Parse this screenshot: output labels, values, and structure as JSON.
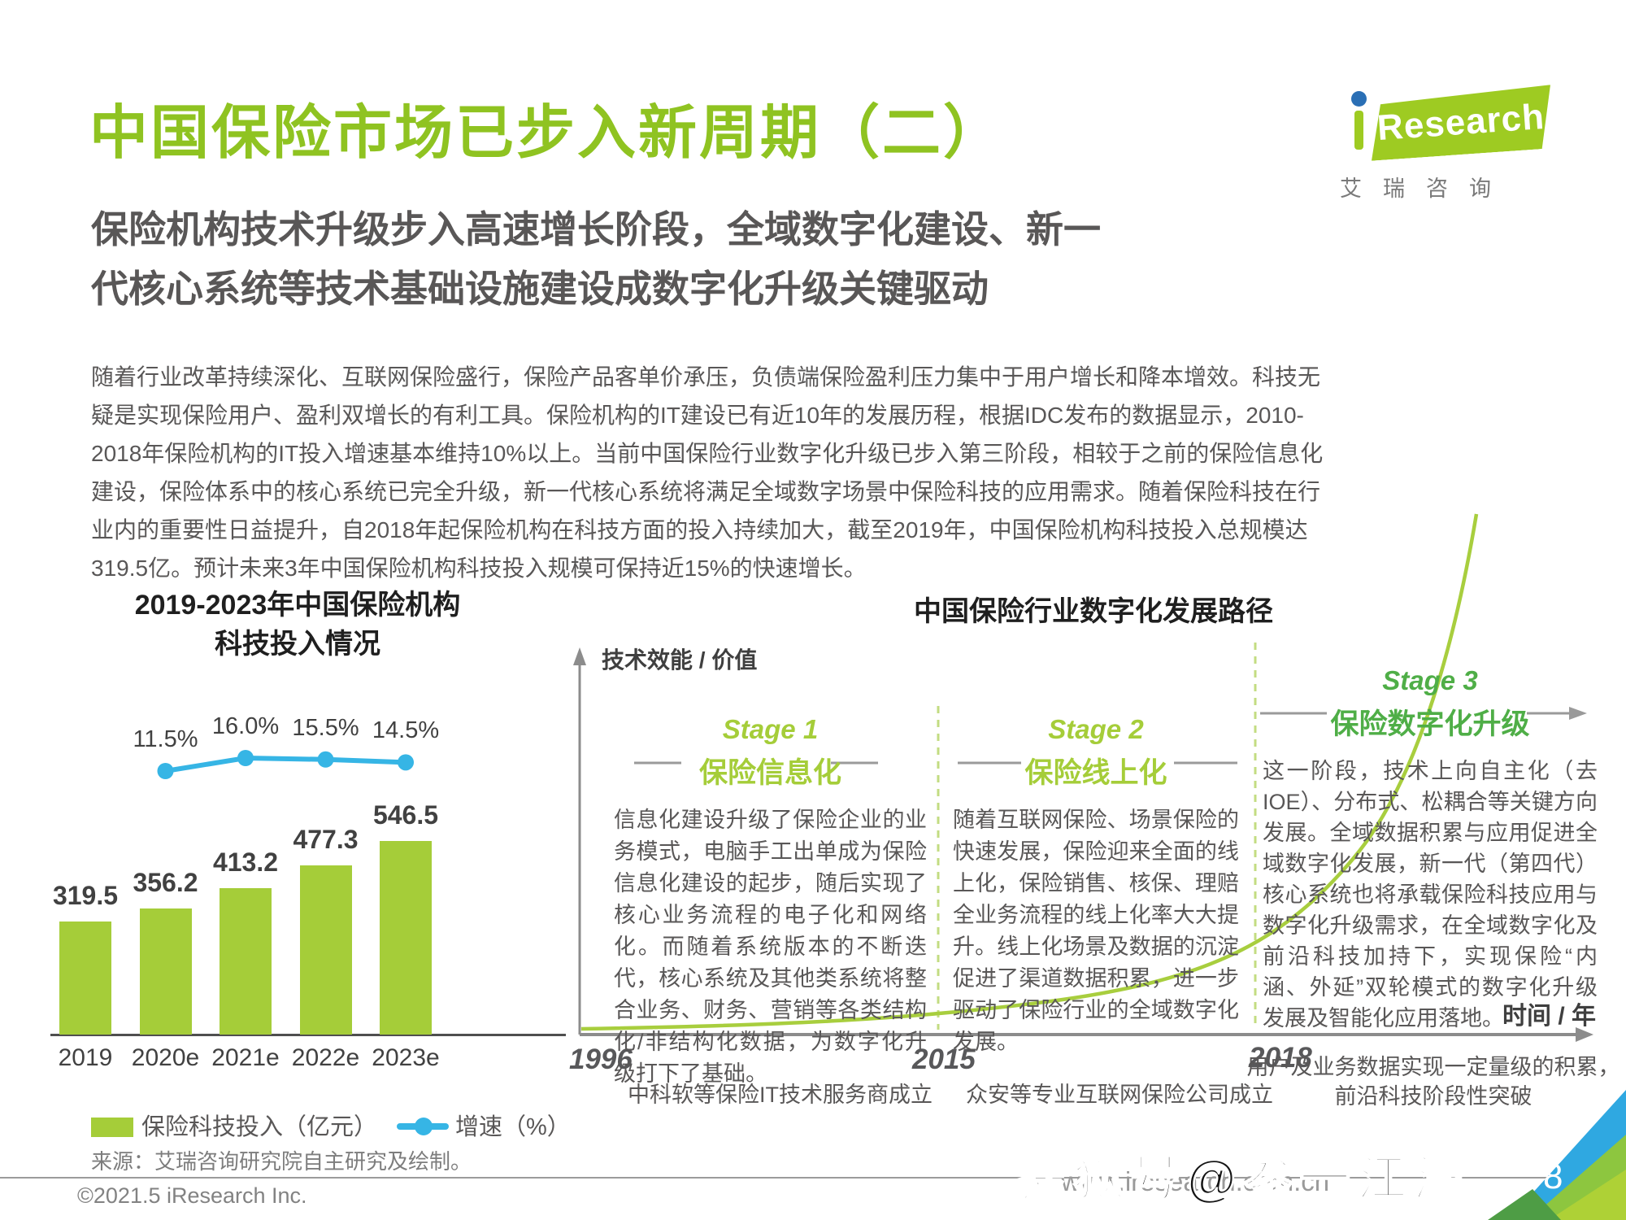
{
  "page": {
    "title": "中国保险市场已步入新周期（二）",
    "subtitle_lines": [
      "保险机构技术升级步入高速增长阶段，全域数字化建设、新一",
      "代核心系统等技术基础设施建设成数字化升级关键驱动"
    ],
    "paragraph_lines": [
      "随着行业改革持续深化、互联网保险盛行，保险产品客单价承压，负债端保险盈利压力集中于用户增长和降本增效。科技无",
      "疑是实现保险用户、盈利双增长的有利工具。保险机构的IT建设已有近10年的发展历程，根据IDC发布的数据显示，2010-",
      "2018年保险机构的IT投入增速基本维持10%以上。当前中国保险行业数字化升级已步入第三阶段，相较于之前的保险信息化",
      "建设，保险体系中的核心系统已完全升级，新一代核心系统将满足全域数字场景中保险科技的应用需求。随着保险科技在行",
      "业内的重要性日益提升，自2018年起保险机构在科技方面的投入持续加大，截至2019年，中国保险机构科技投入总规模达",
      "319.5亿。预计未来3年中国保险机构科技投入规模可保持近15%的快速增长。"
    ],
    "source": "来源：艾瑞咨询研究院自主研究及绘制。",
    "copyright": "©2021.5 iResearch Inc.",
    "footer_url": "www.iresearch.com.cn",
    "watermark": "搜狐号@参一江湖",
    "page_number": "8"
  },
  "logo": {
    "rest": "Research",
    "caption": "艾瑞咨询"
  },
  "chart": {
    "title_line1": "2019-2023年中国保险机构",
    "title_line2": "科技投入情况",
    "legend_bar": "保险科技投入（亿元）",
    "legend_line": "增速（%）"
  },
  "chart_data": {
    "type": "bar",
    "title": "2019-2023年中国保险机构科技投入情况",
    "categories": [
      "2019",
      "2020e",
      "2021e",
      "2022e",
      "2023e"
    ],
    "series": [
      {
        "name": "保险科技投入（亿元）",
        "type": "bar",
        "values": [
          319.5,
          356.2,
          413.2,
          477.3,
          546.5
        ],
        "color": "#a5cd39"
      },
      {
        "name": "增速（%）",
        "type": "line",
        "values": [
          null,
          11.5,
          16.0,
          15.5,
          14.5
        ],
        "labels": [
          "",
          "11.5%",
          "16.0%",
          "15.5%",
          "14.5%"
        ],
        "color": "#36b5e5"
      }
    ],
    "legend_position": "bottom",
    "grid": false
  },
  "diagram": {
    "title": "中国保险行业数字化发展路径",
    "y_axis_label": "技术效能 / 价值",
    "x_axis_label": "时间 / 年",
    "stages": [
      {
        "tag": "Stage 1",
        "name": "保险信息化",
        "body": "信息化建设升级了保险企业的业务模式，电脑手工出单成为保险信息化建设的起步，随后实现了核心业务流程的电子化和网络化。而随着系统版本的不断迭代，核心系统及其他类系统将整合业务、财务、营销等各类结构化/非结构化数据，为数字化升级打下了基础。"
      },
      {
        "tag": "Stage 2",
        "name": "保险线上化",
        "body": "随着互联网保险、场景保险的快速发展，保险迎来全面的线上化，保险销售、核保、理赔全业务流程的线上化率大大提升。线上化场景及数据的沉淀促进了渠道数据积累，进一步驱动了保险行业的全域数字化发展。"
      },
      {
        "tag": "Stage 3",
        "name": "保险数字化升级",
        "body": "这一阶段，技术上向自主化（去IOE）、分布式、松耦合等关键方向发展。全域数据积累与应用促进全域数字化发展，新一代（第四代）核心系统也将承载保险科技应用与数字化升级需求，在全域数字化及前沿科技加持下，实现保险“内涵、外延”双轮模式的数字化升级发展及智能化应用落地。"
      }
    ],
    "milestones": [
      {
        "year": "1996",
        "text": "中科软等保险IT技术服务商成立"
      },
      {
        "year": "2015",
        "text": "众安等专业互联网保险公司成立"
      },
      {
        "year": "2018",
        "text": "用户及业务数据实现一定量级的积累，前沿科技阶段性突破"
      }
    ]
  },
  "colors": {
    "brand_green": "#8fc321",
    "bar_green": "#a5cd39",
    "stage3_green": "#4fae47",
    "line_blue": "#36b5e5"
  }
}
